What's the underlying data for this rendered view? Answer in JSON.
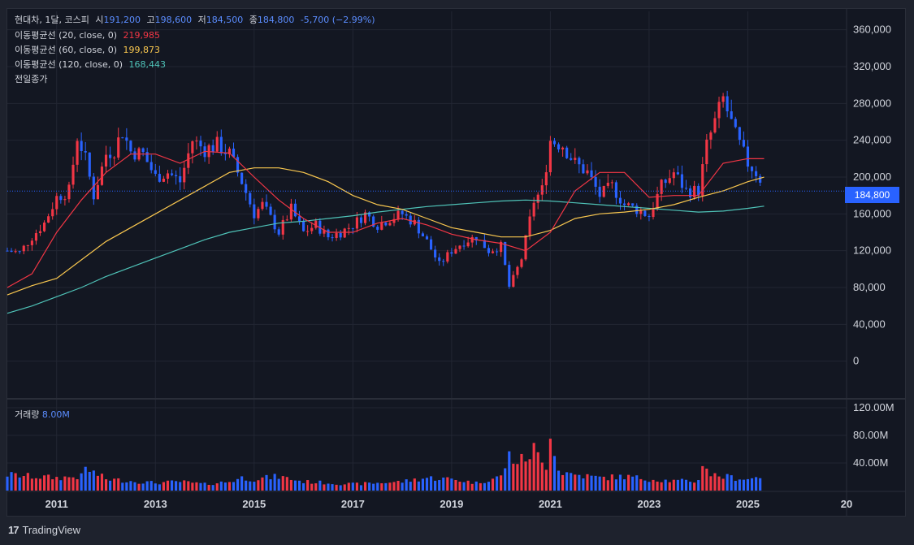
{
  "header": {
    "symbol": "현대차, 1달, 코스피",
    "open_label": "시",
    "open": "191,200",
    "high_label": "고",
    "high": "198,600",
    "low_label": "저",
    "low": "184,500",
    "close_label": "종",
    "close": "184,800",
    "change": "-5,700 (−2.99%)"
  },
  "legend": {
    "ma20_label": "이동평균선 (20, close, 0)",
    "ma20_value": "219,985",
    "ma60_label": "이동평균선 (60, close, 0)",
    "ma60_value": "199,873",
    "ma120_label": "이동평균선 (120, close, 0)",
    "ma120_value": "168,443",
    "prev_close_label": "전일종가"
  },
  "volume_legend": {
    "label": "거래량",
    "value": "8.00M"
  },
  "price_tag": "184,800",
  "branding": {
    "logo": "TradingView"
  },
  "colors": {
    "up": "#f23645",
    "down": "#2962ff",
    "ma20": "#f23645",
    "ma60": "#f9c74f",
    "ma120": "#4fc3b8",
    "background": "#131722",
    "grid": "#222633",
    "text": "#d1d4dc"
  },
  "chart_data": {
    "type": "candlestick",
    "timeframe": "1M",
    "x_ticks": [
      "2011",
      "2013",
      "2015",
      "2017",
      "2019",
      "2021",
      "2023",
      "2025",
      "20"
    ],
    "y_ticks": [
      "0",
      "40,000",
      "80,000",
      "120,000",
      "160,000",
      "200,000",
      "240,000",
      "280,000",
      "320,000",
      "360,000"
    ],
    "volume_ticks": [
      "40.00M",
      "80.00M",
      "120.00M"
    ],
    "ylim": [
      -40000,
      380000
    ],
    "volume_max": 120,
    "x_start": 2010.0,
    "x_end": 2027.0,
    "prices": [
      [
        2010.0,
        120000
      ],
      [
        2010.25,
        118000
      ],
      [
        2010.5,
        135000
      ],
      [
        2010.75,
        150000
      ],
      [
        2011.0,
        178000
      ],
      [
        2011.25,
        185000
      ],
      [
        2011.42,
        245000
      ],
      [
        2011.58,
        220000
      ],
      [
        2011.75,
        180000
      ],
      [
        2012.0,
        225000
      ],
      [
        2012.17,
        230000
      ],
      [
        2012.33,
        250000
      ],
      [
        2012.5,
        228000
      ],
      [
        2012.75,
        225000
      ],
      [
        2013.0,
        200000
      ],
      [
        2013.25,
        205000
      ],
      [
        2013.5,
        195000
      ],
      [
        2013.75,
        240000
      ],
      [
        2014.0,
        230000
      ],
      [
        2014.25,
        235000
      ],
      [
        2014.5,
        225000
      ],
      [
        2014.75,
        195000
      ],
      [
        2015.0,
        160000
      ],
      [
        2015.17,
        170000
      ],
      [
        2015.5,
        140000
      ],
      [
        2015.75,
        165000
      ],
      [
        2016.0,
        140000
      ],
      [
        2016.25,
        148000
      ],
      [
        2016.5,
        135000
      ],
      [
        2016.75,
        140000
      ],
      [
        2017.0,
        148000
      ],
      [
        2017.25,
        160000
      ],
      [
        2017.5,
        148000
      ],
      [
        2017.75,
        155000
      ],
      [
        2018.0,
        160000
      ],
      [
        2018.25,
        150000
      ],
      [
        2018.5,
        130000
      ],
      [
        2018.75,
        105000
      ],
      [
        2019.0,
        120000
      ],
      [
        2019.25,
        130000
      ],
      [
        2019.5,
        135000
      ],
      [
        2019.75,
        120000
      ],
      [
        2020.0,
        125000
      ],
      [
        2020.17,
        80000
      ],
      [
        2020.42,
        112000
      ],
      [
        2020.67,
        175000
      ],
      [
        2020.83,
        185000
      ],
      [
        2021.0,
        240000
      ],
      [
        2021.25,
        235000
      ],
      [
        2021.5,
        215000
      ],
      [
        2021.75,
        205000
      ],
      [
        2022.0,
        180000
      ],
      [
        2022.25,
        190000
      ],
      [
        2022.5,
        170000
      ],
      [
        2022.75,
        165000
      ],
      [
        2023.0,
        158000
      ],
      [
        2023.25,
        190000
      ],
      [
        2023.5,
        205000
      ],
      [
        2023.75,
        185000
      ],
      [
        2024.0,
        185000
      ],
      [
        2024.17,
        235000
      ],
      [
        2024.5,
        285000
      ],
      [
        2024.75,
        245000
      ],
      [
        2025.0,
        215000
      ],
      [
        2025.17,
        205000
      ],
      [
        2025.33,
        191200
      ]
    ],
    "ma20": [
      [
        2010.0,
        80000
      ],
      [
        2010.5,
        95000
      ],
      [
        2011.0,
        140000
      ],
      [
        2011.5,
        175000
      ],
      [
        2012.0,
        205000
      ],
      [
        2012.5,
        225000
      ],
      [
        2013.0,
        225000
      ],
      [
        2013.5,
        215000
      ],
      [
        2014.0,
        228000
      ],
      [
        2014.5,
        226000
      ],
      [
        2015.0,
        200000
      ],
      [
        2015.5,
        175000
      ],
      [
        2016.0,
        155000
      ],
      [
        2016.5,
        140000
      ],
      [
        2017.0,
        140000
      ],
      [
        2017.5,
        150000
      ],
      [
        2018.0,
        155000
      ],
      [
        2018.5,
        148000
      ],
      [
        2019.0,
        138000
      ],
      [
        2019.5,
        132000
      ],
      [
        2020.0,
        128000
      ],
      [
        2020.5,
        120000
      ],
      [
        2021.0,
        140000
      ],
      [
        2021.5,
        185000
      ],
      [
        2022.0,
        205000
      ],
      [
        2022.5,
        205000
      ],
      [
        2023.0,
        178000
      ],
      [
        2023.5,
        180000
      ],
      [
        2024.0,
        180000
      ],
      [
        2024.5,
        215000
      ],
      [
        2025.0,
        220000
      ],
      [
        2025.33,
        219985
      ]
    ],
    "ma60": [
      [
        2010.0,
        72000
      ],
      [
        2010.5,
        82000
      ],
      [
        2011.0,
        90000
      ],
      [
        2011.5,
        110000
      ],
      [
        2012.0,
        130000
      ],
      [
        2012.5,
        145000
      ],
      [
        2013.0,
        160000
      ],
      [
        2013.5,
        175000
      ],
      [
        2014.0,
        190000
      ],
      [
        2014.5,
        205000
      ],
      [
        2015.0,
        210000
      ],
      [
        2015.5,
        210000
      ],
      [
        2016.0,
        205000
      ],
      [
        2016.5,
        195000
      ],
      [
        2017.0,
        180000
      ],
      [
        2017.5,
        170000
      ],
      [
        2018.0,
        165000
      ],
      [
        2018.5,
        155000
      ],
      [
        2019.0,
        145000
      ],
      [
        2019.5,
        140000
      ],
      [
        2020.0,
        135000
      ],
      [
        2020.5,
        135000
      ],
      [
        2021.0,
        142000
      ],
      [
        2021.5,
        155000
      ],
      [
        2022.0,
        160000
      ],
      [
        2022.5,
        162000
      ],
      [
        2023.0,
        165000
      ],
      [
        2023.5,
        170000
      ],
      [
        2024.0,
        178000
      ],
      [
        2024.5,
        185000
      ],
      [
        2025.0,
        195000
      ],
      [
        2025.33,
        199873
      ]
    ],
    "ma120": [
      [
        2010.0,
        52000
      ],
      [
        2010.5,
        60000
      ],
      [
        2011.0,
        70000
      ],
      [
        2011.5,
        80000
      ],
      [
        2012.0,
        92000
      ],
      [
        2012.5,
        102000
      ],
      [
        2013.0,
        112000
      ],
      [
        2013.5,
        122000
      ],
      [
        2014.0,
        132000
      ],
      [
        2014.5,
        140000
      ],
      [
        2015.0,
        145000
      ],
      [
        2015.5,
        150000
      ],
      [
        2016.0,
        152000
      ],
      [
        2016.5,
        155000
      ],
      [
        2017.0,
        158000
      ],
      [
        2017.5,
        162000
      ],
      [
        2018.0,
        165000
      ],
      [
        2018.5,
        168000
      ],
      [
        2019.0,
        170000
      ],
      [
        2019.5,
        172000
      ],
      [
        2020.0,
        174000
      ],
      [
        2020.5,
        175000
      ],
      [
        2021.0,
        174000
      ],
      [
        2021.5,
        172000
      ],
      [
        2022.0,
        170000
      ],
      [
        2022.5,
        168000
      ],
      [
        2023.0,
        166000
      ],
      [
        2023.5,
        164000
      ],
      [
        2024.0,
        162000
      ],
      [
        2024.5,
        163000
      ],
      [
        2025.0,
        166000
      ],
      [
        2025.33,
        168443
      ]
    ],
    "volume_peaks": [
      [
        2010.0,
        25
      ],
      [
        2010.5,
        22
      ],
      [
        2011.0,
        20
      ],
      [
        2011.5,
        22
      ],
      [
        2011.58,
        35
      ],
      [
        2012.0,
        18
      ],
      [
        2012.5,
        15
      ],
      [
        2013.0,
        12
      ],
      [
        2013.5,
        14
      ],
      [
        2014.0,
        10
      ],
      [
        2014.5,
        14
      ],
      [
        2014.75,
        20
      ],
      [
        2015.0,
        18
      ],
      [
        2015.5,
        22
      ],
      [
        2016.0,
        14
      ],
      [
        2016.5,
        12
      ],
      [
        2017.0,
        10
      ],
      [
        2017.5,
        12
      ],
      [
        2018.0,
        14
      ],
      [
        2018.5,
        20
      ],
      [
        2019.0,
        18
      ],
      [
        2019.5,
        12
      ],
      [
        2020.0,
        22
      ],
      [
        2020.17,
        55
      ],
      [
        2020.33,
        45
      ],
      [
        2020.5,
        50
      ],
      [
        2020.67,
        65
      ],
      [
        2020.83,
        42
      ],
      [
        2020.92,
        40
      ],
      [
        2021.0,
        98
      ],
      [
        2021.17,
        30
      ],
      [
        2021.5,
        25
      ],
      [
        2022.0,
        20
      ],
      [
        2022.5,
        22
      ],
      [
        2023.0,
        18
      ],
      [
        2023.5,
        15
      ],
      [
        2024.0,
        15
      ],
      [
        2024.08,
        47
      ],
      [
        2024.25,
        25
      ],
      [
        2024.5,
        22
      ],
      [
        2025.0,
        18
      ],
      [
        2025.25,
        22
      ],
      [
        2025.33,
        8
      ]
    ]
  }
}
